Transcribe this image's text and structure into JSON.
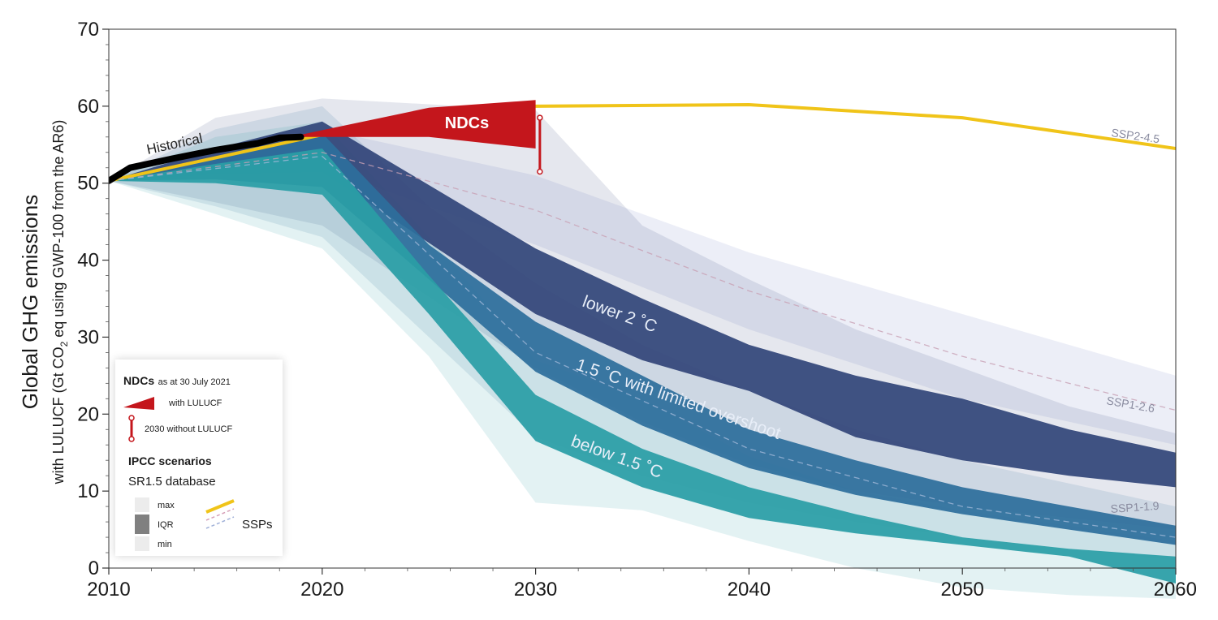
{
  "chart_data": {
    "type": "area",
    "x_ticks": [
      2010,
      2020,
      2030,
      2040,
      2050,
      2060
    ],
    "y_ticks": [
      0,
      10,
      20,
      30,
      40,
      50,
      60,
      70
    ],
    "xlim": [
      2010,
      2060
    ],
    "ylim": [
      0,
      70
    ],
    "ylabel": "Global GHG emissions",
    "ylabel_sub_parts": [
      "with LULUCF (Gt CO",
      "2",
      " eq using GWP-100 from the AR6)"
    ],
    "historical": {
      "label": "Historical",
      "x": [
        2010,
        2011,
        2013,
        2015,
        2017,
        2018,
        2019
      ],
      "y": [
        50.3,
        52.0,
        53.2,
        54.3,
        55.2,
        55.9,
        56.0
      ]
    },
    "ndcs": {
      "label": "NDCs",
      "with_lulucf": {
        "x": [
          2019,
          2025,
          2030
        ],
        "upper": [
          56.3,
          59.8,
          60.8
        ],
        "lower": [
          56.0,
          56.0,
          54.5
        ]
      },
      "without_lulucf_2030": {
        "x": 2030.2,
        "low": 51.5,
        "high": 58.5
      }
    },
    "ssp_lines": [
      {
        "name": "SSP2-4.5",
        "color": "#f0c419",
        "style": "solid",
        "x": [
          2010,
          2020,
          2030,
          2040,
          2050,
          2060
        ],
        "y": [
          50.3,
          56.3,
          60.0,
          60.2,
          58.5,
          54.5
        ]
      },
      {
        "name": "SSP1-2.6",
        "color": "#c8a0b4",
        "style": "dashed",
        "x": [
          2010,
          2020,
          2030,
          2040,
          2050,
          2060
        ],
        "y": [
          50.3,
          54.0,
          46.5,
          36.0,
          27.5,
          20.5
        ]
      },
      {
        "name": "SSP1-1.9",
        "color": "#a0b8d8",
        "style": "dashed",
        "x": [
          2010,
          2020,
          2030,
          2040,
          2050,
          2060
        ],
        "y": [
          50.3,
          53.5,
          28.0,
          15.5,
          8.0,
          4.0
        ]
      }
    ],
    "scenarios": [
      {
        "name": "lower 2 °C",
        "label": "lower 2 ˚C",
        "color": "#33467a",
        "x": [
          2010,
          2015,
          2020,
          2030,
          2035,
          2040,
          2045,
          2050,
          2055,
          2060
        ],
        "range_lower": [
          50.3,
          47.5,
          44.5,
          26.0,
          19.0,
          13.5,
          10.0,
          8.0,
          6.5,
          5.0
        ],
        "range_upper": [
          50.3,
          58.5,
          61.0,
          59.5,
          44.5,
          37.5,
          31.0,
          26.0,
          21.0,
          17.5
        ],
        "iqr_lower": [
          50.3,
          51.2,
          51.5,
          33.0,
          27.0,
          23.0,
          17.0,
          14.0,
          12.0,
          10.5
        ],
        "iqr_upper": [
          50.3,
          54.5,
          58.0,
          41.5,
          35.0,
          29.0,
          25.0,
          22.0,
          18.0,
          15.0
        ]
      },
      {
        "name": "1.5 °C with limited overshoot",
        "label": "1.5 ˚C with limited overshoot",
        "color": "#2d6f9c",
        "x": [
          2010,
          2015,
          2020,
          2025,
          2030,
          2035,
          2040,
          2045,
          2050,
          2055,
          2060
        ],
        "range_lower": [
          50.3,
          47.0,
          43.0,
          30.0,
          17.0,
          12.0,
          8.5,
          6.0,
          4.0,
          2.5,
          1.0
        ],
        "range_upper": [
          50.3,
          57.0,
          60.0,
          47.0,
          37.0,
          29.0,
          23.0,
          18.0,
          14.0,
          11.0,
          8.0
        ],
        "iqr_lower": [
          50.3,
          50.5,
          49.5,
          37.5,
          25.5,
          18.5,
          13.0,
          9.5,
          7.0,
          5.0,
          3.0
        ],
        "iqr_upper": [
          50.3,
          53.5,
          56.5,
          42.0,
          32.0,
          25.0,
          18.0,
          14.0,
          10.5,
          8.0,
          5.5
        ]
      },
      {
        "name": "below 1.5 °C",
        "label": "below 1.5 ˚C",
        "color": "#2a9ea6",
        "x": [
          2010,
          2015,
          2020,
          2025,
          2030,
          2035,
          2040,
          2045,
          2050,
          2055,
          2060
        ],
        "range_lower": [
          50.3,
          46.0,
          41.5,
          27.5,
          8.5,
          7.5,
          3.5,
          0.0,
          -2.5,
          -3.5,
          -4.0
        ],
        "range_upper": [
          50.3,
          56.0,
          58.0,
          43.0,
          27.0,
          22.0,
          14.5,
          10.0,
          7.5,
          5.5,
          3.5
        ],
        "iqr_lower": [
          50.3,
          50.0,
          48.5,
          33.0,
          16.5,
          10.5,
          6.5,
          4.5,
          3.0,
          1.5,
          -2.0
        ],
        "iqr_upper": [
          50.3,
          52.5,
          54.5,
          38.0,
          22.5,
          15.5,
          10.5,
          7.0,
          4.0,
          2.5,
          1.5
        ]
      }
    ],
    "ssp26_band": {
      "x": [
        2010,
        2020,
        2030,
        2040,
        2050,
        2060
      ],
      "lower": [
        50.3,
        52.0,
        42.0,
        31.0,
        22.0,
        16.0
      ],
      "upper": [
        50.3,
        57.0,
        51.0,
        41.0,
        33.0,
        25.0
      ]
    },
    "grid": false,
    "legend_position": "bottom-left"
  },
  "legend": {
    "ndcs_title": "NDCs",
    "ndcs_date": "as at 30 July 2021",
    "with_lulucf": "with LULUCF",
    "without_lulucf": "2030 without LULUCF",
    "ipcc_title": "IPCC scenarios",
    "database": "SR1.5 database",
    "max_label": "max",
    "iqr_label": "IQR",
    "min_label": "min",
    "ssps_label": "SSPs"
  },
  "colors": {
    "historical": "#000000",
    "ndc": "#c4161c",
    "ssp245": "#f0c419"
  }
}
